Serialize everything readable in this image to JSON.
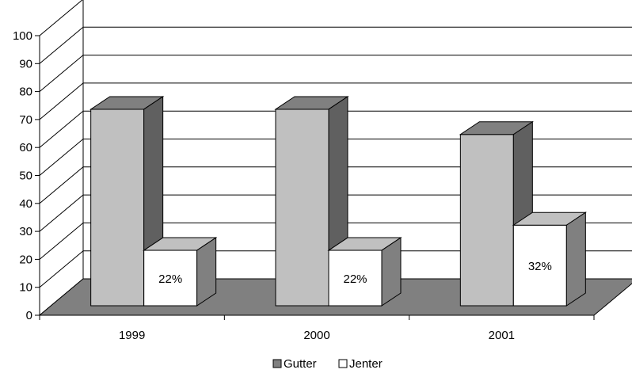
{
  "chart_data": {
    "type": "bar",
    "view": "3d-clustered-column",
    "categories": [
      "1999",
      "2000",
      "2001"
    ],
    "series": [
      {
        "name": "Gutter",
        "values": [
          78,
          78,
          68
        ],
        "color": "#c0c0c0",
        "data_labels": [
          "",
          "",
          ""
        ]
      },
      {
        "name": "Jenter",
        "values": [
          22,
          22,
          32
        ],
        "color": "#ffffff",
        "data_labels": [
          "22%",
          "22%",
          "32%"
        ]
      }
    ],
    "ylim": [
      0,
      100
    ],
    "yticks": [
      "0",
      "10",
      "20",
      "30",
      "40",
      "50",
      "60",
      "70",
      "80",
      "90",
      "100"
    ],
    "xlabel": "",
    "ylabel": "",
    "grid": true,
    "legend_position": "bottom",
    "floor_color": "#808080",
    "side_colors": {
      "Gutter": "#606060",
      "Jenter": "#808080"
    }
  }
}
